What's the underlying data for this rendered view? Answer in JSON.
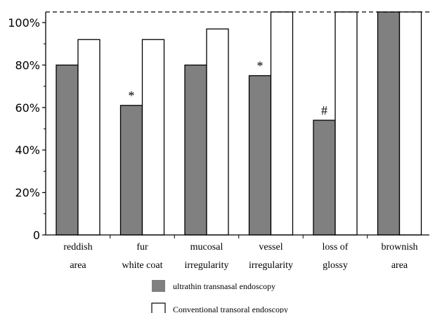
{
  "chart_data": {
    "type": "bar",
    "categories": [
      [
        "reddish",
        "area"
      ],
      [
        "fur",
        "white coat"
      ],
      [
        "mucosal",
        "irregularity"
      ],
      [
        "vessel",
        "irregularity"
      ],
      [
        "loss of",
        "glossy"
      ],
      [
        "brownish",
        "area"
      ]
    ],
    "series": [
      {
        "name": "ultrathin transnasal endoscopy",
        "color": "#808080",
        "values": [
          80,
          61,
          80,
          75,
          54,
          105
        ]
      },
      {
        "name": "Conventional transoral endoscopy",
        "color": "#ffffff",
        "values": [
          92,
          92,
          97,
          105,
          105,
          105
        ]
      }
    ],
    "annotations": [
      {
        "series": 0,
        "category": 1,
        "text": "*"
      },
      {
        "series": 0,
        "category": 3,
        "text": "*"
      },
      {
        "series": 0,
        "category": 4,
        "text": "#"
      }
    ],
    "yticks": [
      {
        "value": 0,
        "label": "0"
      },
      {
        "value": 20,
        "label": "20%"
      },
      {
        "value": 40,
        "label": "40%"
      },
      {
        "value": 60,
        "label": "60%"
      },
      {
        "value": 80,
        "label": "80%"
      },
      {
        "value": 100,
        "label": "100%"
      }
    ],
    "reference_line": 105,
    "ylim": [
      0,
      105
    ],
    "legend_placement": "bottom",
    "grid": false
  }
}
